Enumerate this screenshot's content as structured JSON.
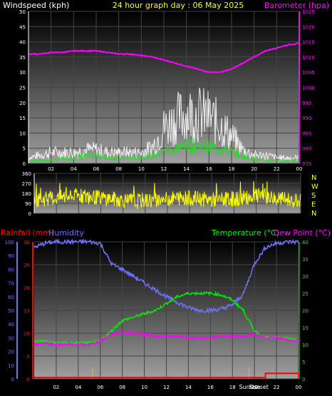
{
  "header": {
    "left_label": "Windspeed (kph)",
    "center_label": "24 hour graph day : 06 May 2025",
    "right_label": "Barometer (hpa)"
  },
  "lower_header": {
    "rainfall_label": "Rainfall (mm)",
    "humidity_label": "Humidity",
    "temperature_label": "Temperature (°C)",
    "dewpoint_label": "Dew Point (°C)"
  },
  "sun_labels": {
    "sunrise": "Sunrise",
    "sunset": "Sunset"
  },
  "colors": {
    "windspeed": "#ffffff",
    "windgust_fill": "#f0f0f0",
    "average_wind": "#22dd22",
    "barometer": "#ff00ff",
    "direction": "#ffff00",
    "rainfall": "#ff0000",
    "humidity": "#7070ff",
    "temperature": "#00ee00",
    "dewpoint": "#ff00ff",
    "sun_marker": "#cccc00"
  },
  "chart_data": [
    {
      "type": "line",
      "x_tick_labels": [
        "02",
        "04",
        "06",
        "08",
        "10",
        "12",
        "14",
        "16",
        "18",
        "20",
        "22",
        "00"
      ],
      "y_left_ticks": [
        0,
        5,
        10,
        15,
        20,
        25,
        30,
        35,
        40,
        45,
        50
      ],
      "y_right_ticks": [
        975,
        980,
        985,
        990,
        995,
        1000,
        1005,
        1010,
        1015,
        1020,
        1025
      ],
      "ylim_left": [
        0,
        50
      ],
      "ylim_right": [
        975,
        1025
      ],
      "grid": true,
      "series": [
        {
          "x": [
            0,
            1,
            2,
            3,
            4,
            5,
            6,
            7,
            8,
            9,
            10,
            11,
            12,
            13,
            14,
            15,
            16,
            17,
            18,
            19,
            20,
            21,
            22,
            23,
            24
          ],
          "values": [
            2,
            3,
            4,
            4,
            4,
            5,
            5,
            4,
            4,
            4,
            4,
            6,
            13,
            16,
            18,
            18,
            17,
            14,
            10,
            5,
            3,
            3,
            2,
            2,
            2
          ]
        },
        {
          "x": [
            0,
            1,
            2,
            3,
            4,
            5,
            6,
            7,
            8,
            9,
            10,
            11,
            12,
            13,
            14,
            15,
            16,
            17,
            18,
            19,
            20,
            21,
            22,
            23,
            24
          ],
          "values": [
            1,
            1,
            1,
            1.5,
            2,
            2.5,
            2.5,
            2,
            2,
            2,
            2,
            2.5,
            4,
            5,
            6,
            6,
            5.5,
            5,
            4,
            2.5,
            1.5,
            1,
            1,
            1,
            1
          ]
        },
        {
          "x": [
            0,
            1,
            2,
            3,
            4,
            5,
            6,
            7,
            8,
            9,
            10,
            11,
            12,
            13,
            14,
            15,
            16,
            17,
            18,
            19,
            20,
            21,
            22,
            23,
            24
          ],
          "values": [
            1011,
            1011,
            1011.5,
            1011.5,
            1012,
            1012,
            1012,
            1011.5,
            1011,
            1011,
            1010.5,
            1010,
            1009,
            1008,
            1007,
            1006,
            1005,
            1005,
            1006,
            1008,
            1010,
            1012,
            1013,
            1014,
            1014.5
          ]
        }
      ]
    },
    {
      "type": "line",
      "x_tick_labels": [],
      "y_ticks": [
        0,
        90,
        180,
        270,
        360
      ],
      "y_tick_letters": [
        "N",
        "W",
        "S",
        "E",
        "N"
      ],
      "ylim": [
        0,
        360
      ],
      "grid": true,
      "series": [
        {
          "x": [
            0,
            1,
            2,
            3,
            4,
            5,
            6,
            7,
            8,
            9,
            10,
            11,
            12,
            13,
            14,
            15,
            16,
            17,
            18,
            19,
            20,
            21,
            22,
            23,
            24
          ],
          "values": [
            120,
            130,
            140,
            150,
            160,
            150,
            140,
            130,
            120,
            115,
            115,
            120,
            130,
            140,
            135,
            130,
            120,
            125,
            130,
            140,
            160,
            150,
            130,
            120,
            110
          ]
        }
      ]
    },
    {
      "type": "line",
      "x_tick_labels": [
        "02",
        "04",
        "06",
        "08",
        "10",
        "12",
        "14",
        "16",
        "18",
        "20",
        "22",
        "00"
      ],
      "y_left_outer_ticks": [
        0,
        10,
        20,
        30,
        40,
        50,
        60,
        70,
        80,
        90,
        100
      ],
      "y_left_inner_ticks": [
        0,
        5,
        10,
        15,
        20,
        25,
        30
      ],
      "y_right_ticks": [
        0,
        5,
        10,
        15,
        20,
        25,
        30,
        35,
        40
      ],
      "ylim_humidity": [
        0,
        100
      ],
      "ylim_rain": [
        0,
        30
      ],
      "ylim_temp": [
        0,
        40
      ],
      "sunrise_hour": 5.3,
      "sunset_hour": 19.5,
      "grid": true,
      "series": [
        {
          "x": [
            0,
            1,
            2,
            3,
            4,
            5,
            6,
            7,
            8,
            9,
            10,
            11,
            12,
            13,
            14,
            15,
            16,
            17,
            18,
            19,
            20,
            21,
            22,
            23,
            24
          ],
          "values": [
            96,
            99,
            100,
            100,
            100,
            100,
            99,
            84,
            80,
            75,
            70,
            65,
            60,
            56,
            52,
            50,
            50,
            51,
            54,
            62,
            84,
            96,
            99,
            100,
            100
          ]
        },
        {
          "x": [
            0,
            1,
            2,
            3,
            4,
            5,
            6,
            7,
            8,
            9,
            10,
            11,
            12,
            13,
            14,
            15,
            16,
            17,
            18,
            19,
            20,
            21,
            22,
            23,
            24
          ],
          "values": [
            0.3,
            0.3,
            0.3,
            0.3,
            0.3,
            0.3,
            0.3,
            0.3,
            0.3,
            0.3,
            0.3,
            0.3,
            0.3,
            0.3,
            0.3,
            0.3,
            0.3,
            0.3,
            0.3,
            0.3,
            0.3,
            1.2,
            1.2,
            1.2,
            0.1
          ]
        },
        {
          "x": [
            0,
            1,
            2,
            3,
            4,
            5,
            6,
            7,
            8,
            9,
            10,
            11,
            12,
            13,
            14,
            15,
            16,
            17,
            18,
            19,
            20,
            21,
            22,
            23,
            24
          ],
          "values": [
            11,
            11,
            10.5,
            10.5,
            10.5,
            10.5,
            11,
            14,
            17,
            18,
            19,
            20,
            22,
            24,
            25,
            25,
            25,
            24.5,
            23,
            20,
            14,
            12,
            12,
            12,
            11
          ]
        },
        {
          "x": [
            0,
            1,
            2,
            3,
            4,
            5,
            6,
            7,
            8,
            9,
            10,
            11,
            12,
            13,
            14,
            15,
            16,
            17,
            18,
            19,
            20,
            21,
            22,
            23,
            24
          ],
          "values": [
            10,
            10.5,
            10,
            10,
            10,
            10,
            11,
            13,
            13.5,
            13.5,
            13,
            12.5,
            12.5,
            12.5,
            12,
            12,
            12,
            12.5,
            12.5,
            12.5,
            13,
            12,
            12,
            11.5,
            11
          ]
        }
      ]
    }
  ]
}
